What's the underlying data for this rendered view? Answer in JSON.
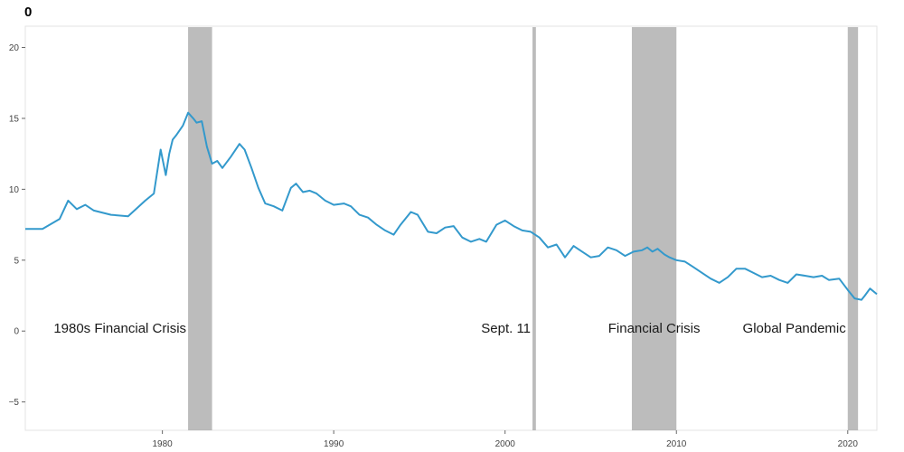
{
  "chart_data": {
    "type": "line",
    "title": "0",
    "xlabel": "",
    "ylabel": "",
    "xlim": [
      1972.0,
      2021.7
    ],
    "ylim": [
      -7,
      21.5
    ],
    "grid": false,
    "x_ticks": [
      1980,
      1990,
      2000,
      2010,
      2020
    ],
    "y_ticks": [
      -5,
      0,
      5,
      10,
      15,
      20
    ],
    "line_color": "#3399cc",
    "band_color": "#a6a6a6",
    "shaded_periods": [
      {
        "start": 1981.5,
        "end": 1982.9,
        "label": "1980s Financial Crisis"
      },
      {
        "start": 2001.6,
        "end": 2001.8,
        "label": "Sept. 11"
      },
      {
        "start": 2007.4,
        "end": 2010.0,
        "label": "Financial Crisis"
      },
      {
        "start": 2020.0,
        "end": 2020.6,
        "label": "Global Pandemic"
      }
    ],
    "series": [
      {
        "name": "",
        "x": [
          1972.0,
          1973.0,
          1974.0,
          1974.5,
          1975.0,
          1975.5,
          1976.0,
          1977.0,
          1978.0,
          1979.0,
          1979.5,
          1979.9,
          1980.2,
          1980.4,
          1980.6,
          1980.8,
          1981.2,
          1981.5,
          1981.8,
          1982.0,
          1982.3,
          1982.6,
          1982.9,
          1983.2,
          1983.5,
          1984.0,
          1984.5,
          1984.8,
          1985.2,
          1985.6,
          1986.0,
          1986.5,
          1987.0,
          1987.5,
          1987.8,
          1988.2,
          1988.6,
          1989.0,
          1989.5,
          1990.0,
          1990.6,
          1991.0,
          1991.5,
          1992.0,
          1992.5,
          1993.0,
          1993.5,
          1993.9,
          1994.5,
          1994.9,
          1995.5,
          1996.0,
          1996.5,
          1997.0,
          1997.5,
          1998.0,
          1998.5,
          1998.9,
          1999.5,
          2000.0,
          2000.5,
          2001.0,
          2001.5,
          2002.0,
          2002.5,
          2003.0,
          2003.5,
          2004.0,
          2004.5,
          2005.0,
          2005.5,
          2006.0,
          2006.5,
          2007.0,
          2007.5,
          2008.0,
          2008.3,
          2008.6,
          2008.9,
          2009.3,
          2009.6,
          2010.0,
          2010.5,
          2011.0,
          2011.5,
          2012.0,
          2012.5,
          2013.0,
          2013.5,
          2014.0,
          2014.5,
          2015.0,
          2015.5,
          2016.0,
          2016.5,
          2017.0,
          2017.5,
          2018.0,
          2018.5,
          2018.9,
          2019.5,
          2020.0,
          2020.4,
          2020.8,
          2021.0,
          2021.3,
          2021.7
        ],
        "values": [
          7.2,
          7.2,
          7.9,
          9.2,
          8.6,
          8.9,
          8.5,
          8.2,
          8.1,
          9.2,
          9.7,
          12.8,
          11.0,
          12.5,
          13.5,
          13.8,
          14.5,
          15.4,
          15.0,
          14.7,
          14.8,
          13.0,
          11.8,
          12.0,
          11.5,
          12.3,
          13.2,
          12.8,
          11.5,
          10.1,
          9.0,
          8.8,
          8.5,
          10.1,
          10.4,
          9.8,
          9.9,
          9.7,
          9.2,
          8.9,
          9.0,
          8.8,
          8.2,
          8.0,
          7.5,
          7.1,
          6.8,
          7.5,
          8.4,
          8.2,
          7.0,
          6.9,
          7.3,
          7.4,
          6.6,
          6.3,
          6.5,
          6.3,
          7.5,
          7.8,
          7.4,
          7.1,
          7.0,
          6.6,
          5.9,
          6.1,
          5.2,
          6.0,
          5.6,
          5.2,
          5.3,
          5.9,
          5.7,
          5.3,
          5.6,
          5.7,
          5.9,
          5.6,
          5.8,
          5.4,
          5.2,
          5.0,
          4.9,
          4.5,
          4.1,
          3.7,
          3.4,
          3.8,
          4.4,
          4.4,
          4.1,
          3.8,
          3.9,
          3.6,
          3.4,
          4.0,
          3.9,
          3.8,
          3.9,
          3.6,
          3.7,
          2.9,
          2.3,
          2.2,
          2.5,
          3.0,
          2.6
        ]
      }
    ]
  }
}
